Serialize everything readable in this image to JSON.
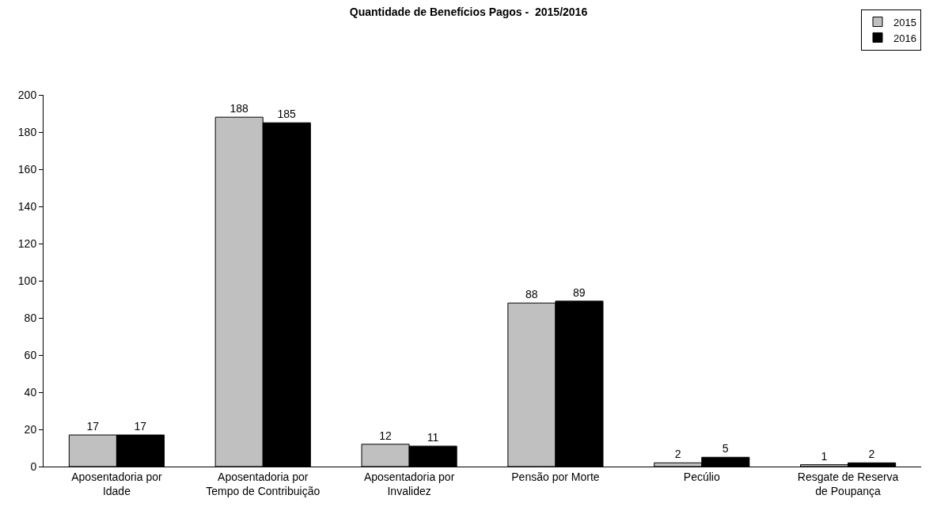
{
  "chart_data": {
    "type": "bar",
    "title": "Quantidade de Benefícios Pagos -  2015/2016",
    "categories": [
      "Aposentadoria por\nIdade",
      "Aposentadoria por\nTempo de Contribuição",
      "Aposentadoria por\nInvalidez",
      "Pensão por Morte",
      "Pecúlio",
      "Resgate de Reserva\nde Poupança"
    ],
    "series": [
      {
        "name": "2015",
        "color": "#c0c0c0",
        "values": [
          17,
          188,
          12,
          88,
          2,
          1
        ]
      },
      {
        "name": "2016",
        "color": "#000000",
        "values": [
          17,
          185,
          11,
          89,
          5,
          2
        ]
      }
    ],
    "ylim": [
      0,
      200
    ],
    "yticks": [
      0,
      20,
      40,
      60,
      80,
      100,
      120,
      140,
      160,
      180,
      200
    ],
    "data_labels": true,
    "grid": false,
    "legend": "top right"
  }
}
